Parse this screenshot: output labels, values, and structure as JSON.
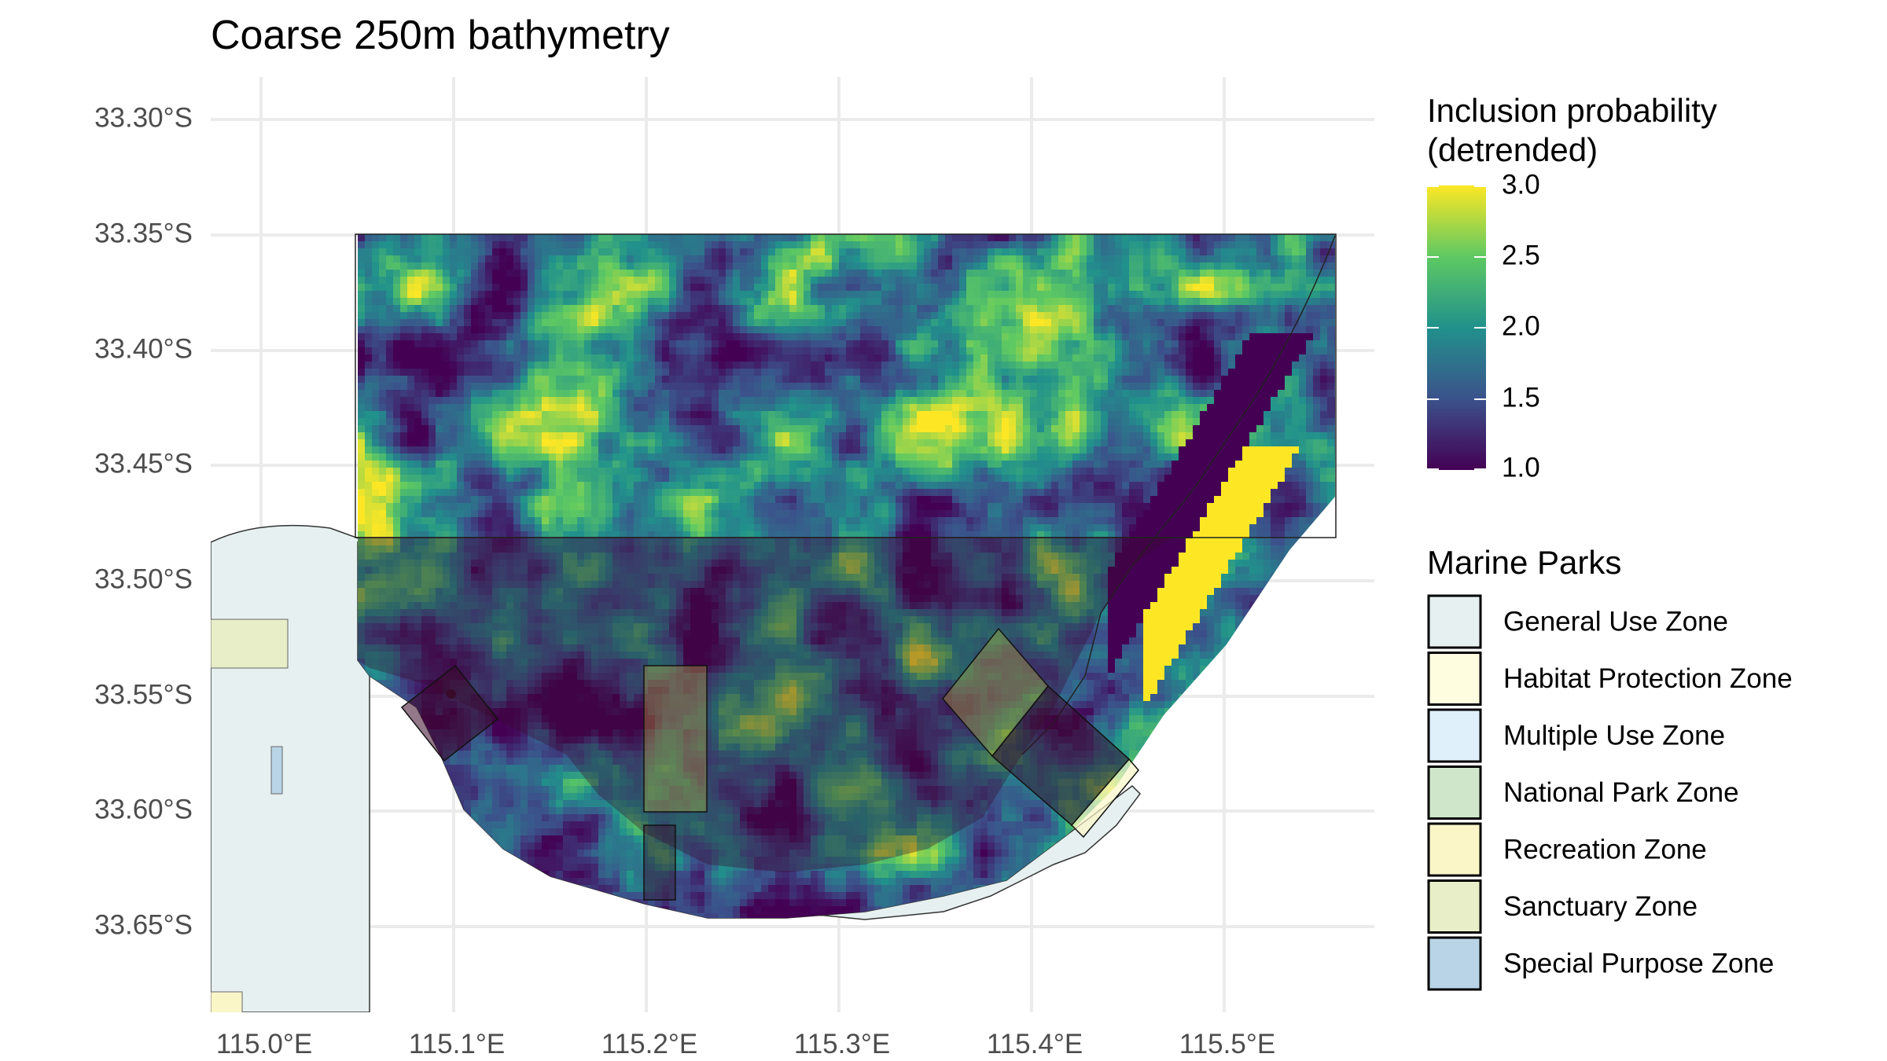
{
  "title": "Coarse 250m bathymetry",
  "axes": {
    "x_ticks": [
      "115.0°E",
      "115.1°E",
      "115.2°E",
      "115.3°E",
      "115.4°E",
      "115.5°E"
    ],
    "y_ticks": [
      "33.30°S",
      "33.35°S",
      "33.40°S",
      "33.45°S",
      "33.50°S",
      "33.55°S",
      "33.60°S",
      "33.65°S"
    ]
  },
  "colorbar": {
    "title_line1": "Inclusion probability",
    "title_line2": "(detrended)",
    "ticks": [
      "3.0",
      "2.5",
      "2.0",
      "1.5",
      "1.0"
    ],
    "min": 1.0,
    "max": 3.0,
    "colors": [
      "#440154",
      "#3b528b",
      "#21918c",
      "#5ec962",
      "#fde725"
    ]
  },
  "marine_parks": {
    "title": "Marine Parks",
    "items": [
      {
        "label": "General Use Zone",
        "color": "#e6f0f0"
      },
      {
        "label": "Habitat Protection Zone",
        "color": "#fffde0"
      },
      {
        "label": "Multiple Use Zone",
        "color": "#e0f0fa"
      },
      {
        "label": "National Park Zone",
        "color": "#cfe6cb"
      },
      {
        "label": "Recreation Zone",
        "color": "#fbf6c8"
      },
      {
        "label": "Sanctuary Zone",
        "color": "#e8efc8"
      },
      {
        "label": "Special Purpose Zone",
        "color": "#b8d4e6"
      }
    ]
  },
  "map_colors": {
    "land": "#ffffff",
    "general_use_water": "#e6f0f0",
    "overlay": "#3a0a2a"
  }
}
